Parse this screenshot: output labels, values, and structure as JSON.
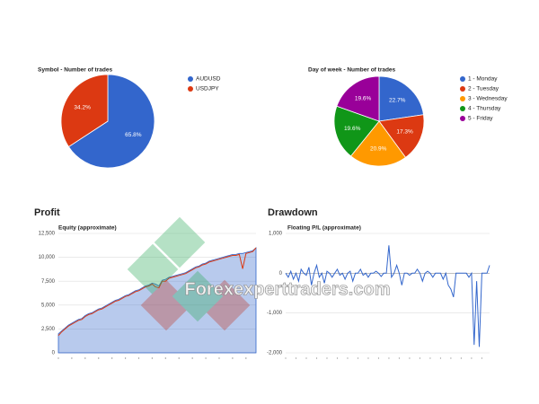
{
  "chart_data": [
    {
      "type": "pie",
      "title": "Symbol - Number of trades",
      "categories": [
        "AUDUSD",
        "USDJPY"
      ],
      "values": [
        65.8,
        34.2
      ],
      "value_labels": [
        "65.8%",
        "34.2%"
      ],
      "colors": [
        "#3366cc",
        "#dc3912"
      ]
    },
    {
      "type": "pie",
      "title": "Day of week - Number of trades",
      "categories": [
        "1 - Monday",
        "2 - Tuesday",
        "3 - Wednesday",
        "4 - Thursday",
        "5 - Friday"
      ],
      "values": [
        22.7,
        17.3,
        20.9,
        19.6,
        19.6
      ],
      "value_labels": [
        "22.7%",
        "17.3%",
        "20.9%",
        "19.6%",
        "19.6%"
      ],
      "colors": [
        "#3366cc",
        "#dc3912",
        "#ff9900",
        "#109618",
        "#990099"
      ]
    },
    {
      "type": "area",
      "title": "Profit",
      "subtitle": "Equity (approximate)",
      "ylim": [
        0,
        12500
      ],
      "yticks": [
        0,
        {
          "value": 2500,
          "label": "2,500"
        },
        {
          "value": 5000,
          "label": "5,000"
        },
        {
          "value": 7500,
          "label": "7,500"
        },
        {
          "value": 10000,
          "label": "10,000"
        },
        {
          "value": 12500,
          "label": "12,500"
        }
      ],
      "grid": true,
      "series": [
        {
          "style": "area",
          "color": "#3366cc",
          "values": [
            2000,
            2300,
            2600,
            2900,
            3100,
            3300,
            3500,
            3600,
            3900,
            4100,
            4200,
            4400,
            4600,
            4700,
            4900,
            5100,
            5300,
            5500,
            5600,
            5800,
            6000,
            6100,
            6300,
            6500,
            6600,
            6800,
            7000,
            7100,
            7300,
            7200,
            7000,
            7600,
            7700,
            7900,
            8000,
            8100,
            8200,
            8300,
            8400,
            8600,
            8800,
            9000,
            9100,
            9300,
            9400,
            9600,
            9700,
            9800,
            9900,
            10000,
            10100,
            10200,
            10300,
            10300,
            10400,
            10400,
            10500,
            10600,
            10700,
            11000
          ]
        },
        {
          "style": "line",
          "color": "#dc3912",
          "values": [
            1800,
            2200,
            2500,
            2800,
            3000,
            3200,
            3400,
            3500,
            3800,
            4000,
            4100,
            4300,
            4500,
            4600,
            4800,
            5000,
            5200,
            5400,
            5500,
            5700,
            5900,
            6000,
            6200,
            6400,
            6500,
            6700,
            6900,
            7000,
            7200,
            6900,
            6800,
            7500,
            7500,
            7800,
            7900,
            8000,
            8100,
            8200,
            8300,
            8500,
            8700,
            8900,
            9000,
            9200,
            9300,
            9500,
            9600,
            9700,
            9800,
            9900,
            10000,
            10100,
            10200,
            10200,
            10300,
            8800,
            10400,
            10500,
            10600,
            11000
          ]
        }
      ]
    },
    {
      "type": "line",
      "title": "Drawdown",
      "subtitle": "Floating P/L (approximate)",
      "ylim": [
        -2000,
        1000
      ],
      "yticks": [
        {
          "value": -2000,
          "label": "-2,000"
        },
        {
          "value": -1000,
          "label": "-1,000"
        },
        0,
        {
          "value": 1000,
          "label": "1,000"
        }
      ],
      "grid": true,
      "series": [
        {
          "style": "line",
          "color": "#3366cc",
          "values": [
            0,
            -100,
            50,
            -150,
            0,
            -200,
            100,
            0,
            -50,
            150,
            -300,
            0,
            200,
            -100,
            0,
            -250,
            50,
            0,
            -100,
            0,
            100,
            -50,
            0,
            -150,
            0,
            50,
            -200,
            0,
            0,
            100,
            -50,
            0,
            -100,
            0,
            0,
            50,
            0,
            -80,
            0,
            0,
            700,
            -100,
            0,
            200,
            0,
            -300,
            0,
            0,
            -50,
            0,
            0,
            100,
            0,
            -200,
            0,
            50,
            0,
            -100,
            0,
            0,
            0,
            -150,
            0,
            -300,
            -400,
            -600,
            0,
            0,
            0,
            0,
            0,
            -100,
            0,
            -1800,
            -200,
            -1850,
            0,
            0,
            0,
            200
          ]
        }
      ]
    }
  ],
  "watermark": "Forexexperttraders.com"
}
